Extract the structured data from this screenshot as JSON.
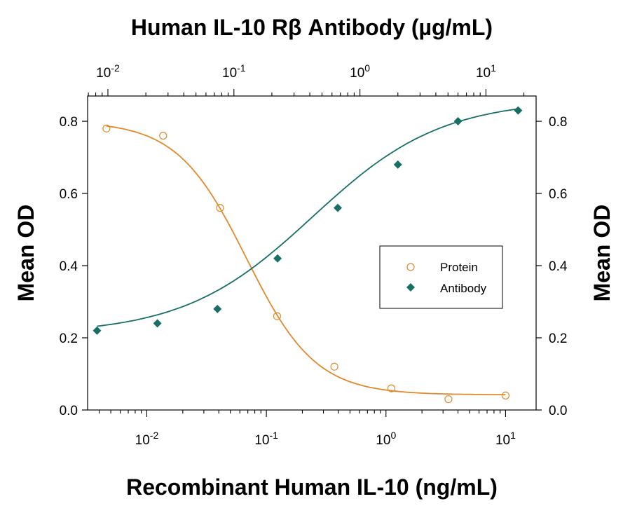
{
  "chart_data": {
    "type": "scatter",
    "title": "Human IL-10 Rβ Antibody (µg/mL)",
    "xlabel": "Recombinant Human IL-10  (ng/mL)",
    "ylabel": "Mean OD",
    "ylabel_right": "Mean OD",
    "x_scale": "log",
    "xlim": [
      0.0032,
      18
    ],
    "ylim": [
      0.0,
      0.87
    ],
    "x_ticks": [
      "10-2",
      "10-1",
      "100",
      "101"
    ],
    "x_ticks_top": [
      "10-2",
      "10-1",
      "100",
      "101"
    ],
    "x2_scale": "log",
    "x2lim": [
      0.0069,
      25
    ],
    "y_ticks": [
      "0.0",
      "0.2",
      "0.4",
      "0.6",
      "0.8"
    ],
    "legend_position": "center-right",
    "series": [
      {
        "name": "Protein",
        "axis": "bottom",
        "marker": "open-circle",
        "color": "#e08a2c",
        "x": [
          0.0046,
          0.0137,
          0.041,
          0.123,
          0.37,
          1.11,
          3.33,
          10
        ],
        "y": [
          0.78,
          0.76,
          0.56,
          0.26,
          0.12,
          0.06,
          0.03,
          0.04
        ],
        "curve": {
          "top": 0.8,
          "bottom": 0.042,
          "ec50": 0.068,
          "hill": 1.5
        }
      },
      {
        "name": "Antibody",
        "axis": "top",
        "marker": "filled-diamond",
        "color": "#176f66",
        "x": [
          0.0082,
          0.0247,
          0.074,
          0.222,
          0.667,
          2.0,
          6.0,
          18.0
        ],
        "y": [
          0.22,
          0.24,
          0.28,
          0.42,
          0.56,
          0.68,
          0.8,
          0.83
        ],
        "curve": {
          "top": 0.86,
          "bottom": 0.21,
          "ec50": 0.42,
          "hill": 0.85
        }
      }
    ]
  }
}
